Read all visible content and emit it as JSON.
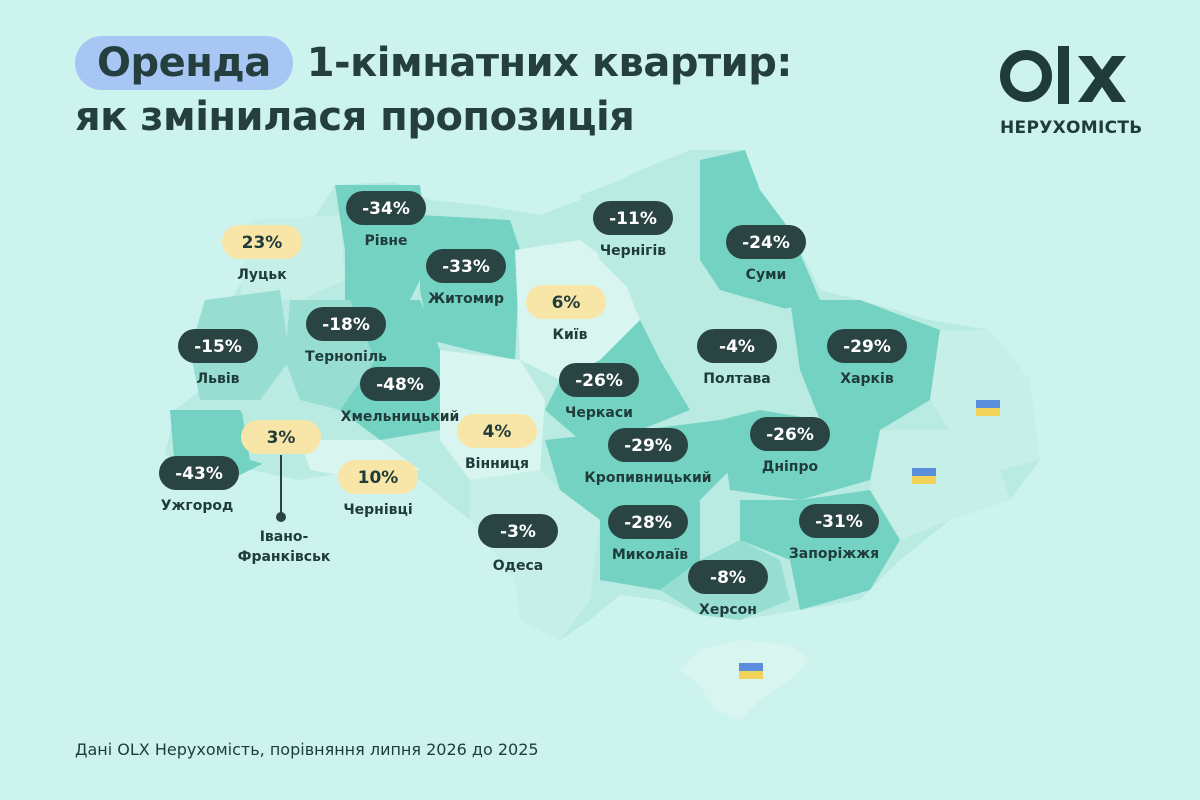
{
  "title": {
    "highlight": "Оренда",
    "line1_rest": "1-кімнатних квартир:",
    "line2": "як змінилася пропозиція"
  },
  "logo": {
    "brand": "OLX",
    "subtitle": "НЕРУХОМІСТЬ"
  },
  "colors": {
    "background": "#cdf3ee",
    "negative_badge": "#2a4443",
    "positive_badge": "#f8e6a8",
    "title_pill": "#a7c6f3",
    "region_dark": "#74d2c2",
    "region_mid": "#98ddd2",
    "region_light": "#b9ebe3",
    "region_pale": "#d8f5f0"
  },
  "regions": [
    {
      "id": "rivne",
      "value": "-34%",
      "city": "Рівне",
      "positive": false
    },
    {
      "id": "lutsk",
      "value": "23%",
      "city": "Луцьк",
      "positive": true
    },
    {
      "id": "zhytomyr",
      "value": "-33%",
      "city": "Житомир",
      "positive": false
    },
    {
      "id": "kyiv",
      "value": "6%",
      "city": "Київ",
      "positive": true
    },
    {
      "id": "chernihiv",
      "value": "-11%",
      "city": "Чернігів",
      "positive": false
    },
    {
      "id": "sumy",
      "value": "-24%",
      "city": "Суми",
      "positive": false
    },
    {
      "id": "lviv",
      "value": "-15%",
      "city": "Львів",
      "positive": false
    },
    {
      "id": "ternopil",
      "value": "-18%",
      "city": "Тернопіль",
      "positive": false
    },
    {
      "id": "khmelnytskyi",
      "value": "-48%",
      "city": "Хмельницький",
      "positive": false
    },
    {
      "id": "cherkasy",
      "value": "-26%",
      "city": "Черкаси",
      "positive": false
    },
    {
      "id": "poltava",
      "value": "-4%",
      "city": "Полтава",
      "positive": false
    },
    {
      "id": "kharkiv",
      "value": "-29%",
      "city": "Харків",
      "positive": false
    },
    {
      "id": "ivano-frankivsk",
      "value": "3%",
      "city": "Івано-\nФранківськ",
      "positive": true
    },
    {
      "id": "vinnytsia",
      "value": "4%",
      "city": "Вінниця",
      "positive": true
    },
    {
      "id": "kropyvnytskyi",
      "value": "-29%",
      "city": "Кропивницький",
      "positive": false
    },
    {
      "id": "dnipro",
      "value": "-26%",
      "city": "Дніпро",
      "positive": false
    },
    {
      "id": "uzhhorod",
      "value": "-43%",
      "city": "Ужгород",
      "positive": false
    },
    {
      "id": "chernivtsi",
      "value": "10%",
      "city": "Чернівці",
      "positive": true
    },
    {
      "id": "odesa",
      "value": "-3%",
      "city": "Одеса",
      "positive": false
    },
    {
      "id": "mykolaiv",
      "value": "-28%",
      "city": "Миколаїв",
      "positive": false
    },
    {
      "id": "zaporizhzhia",
      "value": "-31%",
      "city": "Запоріжжя",
      "positive": false
    },
    {
      "id": "kherson",
      "value": "-8%",
      "city": "Херсон",
      "positive": false
    }
  ],
  "flags": 3,
  "footer": "Дані OLX Нерухомість, порівняння липня 2026 до 2025"
}
